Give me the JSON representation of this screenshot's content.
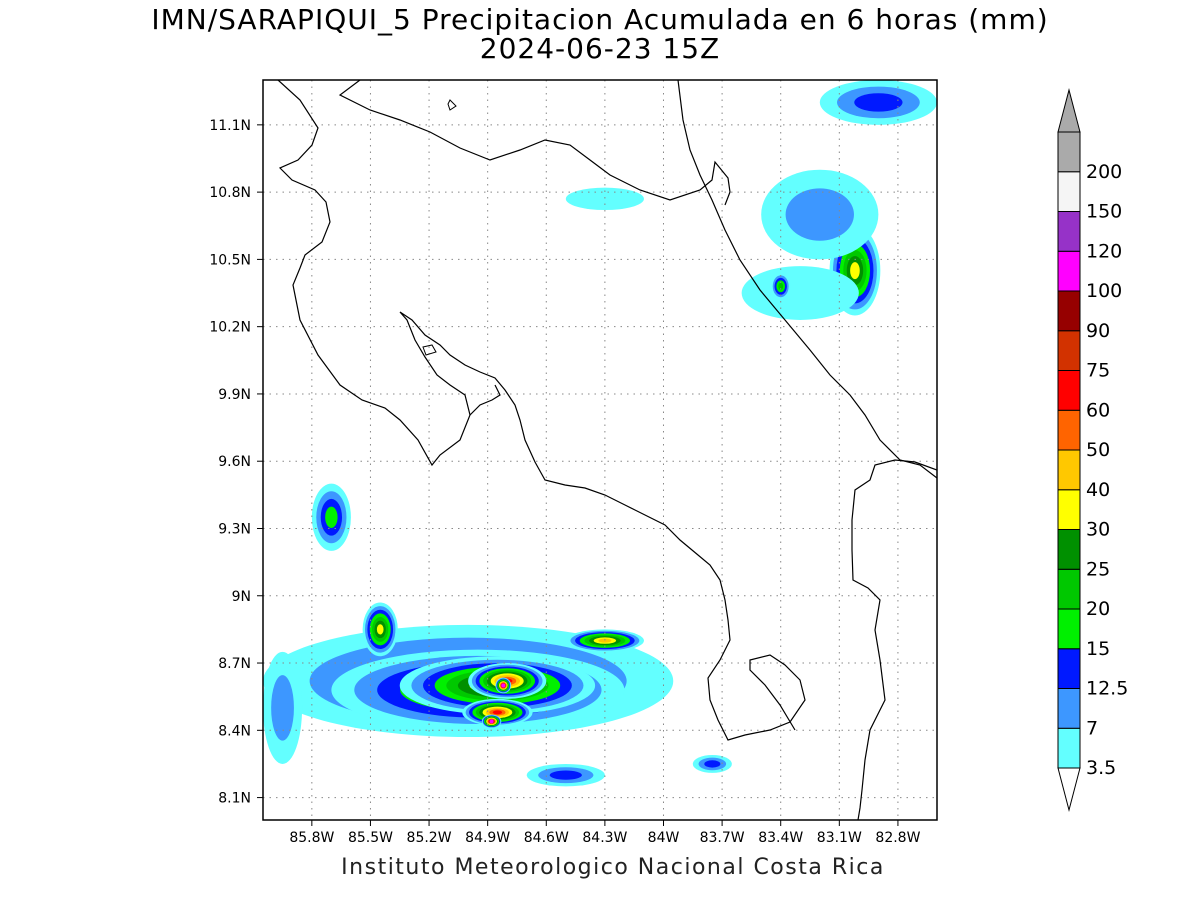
{
  "title": {
    "line1": "IMN/SARAPIQUI_5 Precipitacion Acumulada en 6 horas (mm)",
    "line2": "2024-06-23 15Z"
  },
  "footer": "Instituto Meteorologico Nacional Costa Rica",
  "map": {
    "lon_range": [
      -86.05,
      -82.6
    ],
    "lat_range": [
      8.0,
      11.3
    ],
    "lat_ticks": [
      {
        "value": 8.1,
        "label": "8.1N"
      },
      {
        "value": 8.4,
        "label": "8.4N"
      },
      {
        "value": 8.7,
        "label": "8.7N"
      },
      {
        "value": 9.0,
        "label": "9N"
      },
      {
        "value": 9.3,
        "label": "9.3N"
      },
      {
        "value": 9.6,
        "label": "9.6N"
      },
      {
        "value": 9.9,
        "label": "9.9N"
      },
      {
        "value": 10.2,
        "label": "10.2N"
      },
      {
        "value": 10.5,
        "label": "10.5N"
      },
      {
        "value": 10.8,
        "label": "10.8N"
      },
      {
        "value": 11.1,
        "label": "11.1N"
      }
    ],
    "lon_ticks": [
      {
        "value": -85.8,
        "label": "85.8W"
      },
      {
        "value": -85.5,
        "label": "85.5W"
      },
      {
        "value": -85.2,
        "label": "85.2W"
      },
      {
        "value": -84.9,
        "label": "84.9W"
      },
      {
        "value": -84.6,
        "label": "84.6W"
      },
      {
        "value": -84.3,
        "label": "84.3W"
      },
      {
        "value": -84.0,
        "label": "84W"
      },
      {
        "value": -83.7,
        "label": "83.7W"
      },
      {
        "value": -83.4,
        "label": "83.4W"
      },
      {
        "value": -83.1,
        "label": "83.1W"
      },
      {
        "value": -82.8,
        "label": "82.8W"
      }
    ],
    "grid": "dotted"
  },
  "colorbar": {
    "levels": [
      {
        "label": "3.5",
        "color": "#63ffff"
      },
      {
        "label": "7",
        "color": "#3d97ff"
      },
      {
        "label": "12.5",
        "color": "#0019ff"
      },
      {
        "label": "15",
        "color": "#00f000"
      },
      {
        "label": "20",
        "color": "#00c800"
      },
      {
        "label": "25",
        "color": "#009000"
      },
      {
        "label": "30",
        "color": "#ffff00"
      },
      {
        "label": "40",
        "color": "#ffc800"
      },
      {
        "label": "50",
        "color": "#ff6400"
      },
      {
        "label": "60",
        "color": "#ff0000"
      },
      {
        "label": "75",
        "color": "#d23200"
      },
      {
        "label": "90",
        "color": "#960000"
      },
      {
        "label": "100",
        "color": "#ff00ff"
      },
      {
        "label": "120",
        "color": "#9632c8"
      },
      {
        "label": "150",
        "color": "#f5f5f5"
      },
      {
        "label": "200",
        "color": "#aaaaaa"
      }
    ],
    "top_arrow_color": "#aaaaaa",
    "bottom_arrow_color": "#ffffff"
  },
  "precip_blobs": [
    {
      "lon": -85.0,
      "lat": 8.62,
      "rx": 1.05,
      "ry": 0.25,
      "level": 3
    },
    {
      "lon": -84.95,
      "lat": 8.58,
      "rx": 0.75,
      "ry": 0.18,
      "level": 5
    },
    {
      "lon": -84.85,
      "lat": 8.6,
      "rx": 0.5,
      "ry": 0.13,
      "level": 7
    },
    {
      "lon": -84.8,
      "lat": 8.62,
      "rx": 0.2,
      "ry": 0.08,
      "level": 9
    },
    {
      "lon": -84.85,
      "lat": 8.48,
      "rx": 0.18,
      "ry": 0.06,
      "level": 9
    },
    {
      "lon": -84.82,
      "lat": 8.6,
      "rx": 0.04,
      "ry": 0.035,
      "level": 12
    },
    {
      "lon": -84.88,
      "lat": 8.44,
      "rx": 0.05,
      "ry": 0.03,
      "level": 12
    },
    {
      "lon": -84.3,
      "lat": 8.8,
      "rx": 0.2,
      "ry": 0.05,
      "level": 7
    },
    {
      "lon": -85.45,
      "lat": 8.85,
      "rx": 0.09,
      "ry": 0.12,
      "level": 6
    },
    {
      "lon": -85.7,
      "lat": 9.35,
      "rx": 0.1,
      "ry": 0.15,
      "level": 3
    },
    {
      "lon": -85.95,
      "lat": 8.5,
      "rx": 0.1,
      "ry": 0.25,
      "level": 1
    },
    {
      "lon": -83.02,
      "lat": 10.45,
      "rx": 0.13,
      "ry": 0.2,
      "level": 6
    },
    {
      "lon": -83.2,
      "lat": 10.7,
      "rx": 0.3,
      "ry": 0.2,
      "level": 1
    },
    {
      "lon": -82.9,
      "lat": 11.2,
      "rx": 0.3,
      "ry": 0.1,
      "level": 2
    },
    {
      "lon": -83.3,
      "lat": 10.35,
      "rx": 0.3,
      "ry": 0.12,
      "level": 0
    },
    {
      "lon": -84.3,
      "lat": 10.77,
      "rx": 0.2,
      "ry": 0.05,
      "level": 0
    },
    {
      "lon": -83.4,
      "lat": 10.38,
      "rx": 0.05,
      "ry": 0.06,
      "level": 4
    },
    {
      "lon": -84.5,
      "lat": 8.2,
      "rx": 0.2,
      "ry": 0.05,
      "level": 2
    },
    {
      "lon": -83.75,
      "lat": 8.25,
      "rx": 0.1,
      "ry": 0.04,
      "level": 2
    }
  ]
}
